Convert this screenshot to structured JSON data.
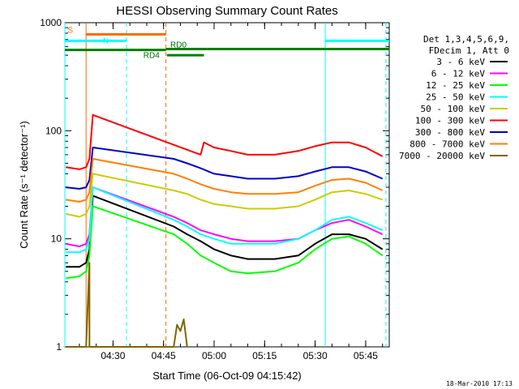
{
  "chart_data": {
    "type": "line",
    "title": "HESSI Observing Summary Count Rates",
    "xlabel": "Start Time (06-Oct-09 04:15:42)",
    "ylabel": "Count Rate (s⁻¹ detector⁻¹)",
    "yscale": "log",
    "ylim": [
      1,
      1000
    ],
    "xlim": [
      "04:15:42",
      "05:52:00"
    ],
    "x_ticks": [
      "04:30",
      "04:45",
      "05:00",
      "05:15",
      "05:30",
      "05:45"
    ],
    "y_ticks": [
      "1",
      "10",
      "100",
      "1000"
    ],
    "legend_position": "right",
    "legend_header": [
      "Det 1,3,4,5,6,9,",
      "FDecim 1, Att 0"
    ],
    "series": [
      {
        "name": "3 - 6 keV",
        "color": "#000000",
        "points": [
          [
            "04:16",
            5.5
          ],
          [
            "04:20",
            5.5
          ],
          [
            "04:22",
            6
          ],
          [
            "04:23",
            8
          ],
          [
            "04:24",
            25
          ],
          [
            "04:48",
            13
          ],
          [
            "04:52",
            11
          ],
          [
            "04:56",
            9.5
          ],
          [
            "05:00",
            8
          ],
          [
            "05:05",
            7
          ],
          [
            "05:10",
            6.5
          ],
          [
            "05:18",
            6.5
          ],
          [
            "05:25",
            7
          ],
          [
            "05:30",
            9
          ],
          [
            "05:35",
            11
          ],
          [
            "05:40",
            11
          ],
          [
            "05:45",
            10
          ],
          [
            "05:50",
            8
          ]
        ]
      },
      {
        "name": "6 - 12 keV",
        "color": "#ff00ff",
        "points": [
          [
            "04:16",
            9
          ],
          [
            "04:20",
            8.5
          ],
          [
            "04:22",
            9
          ],
          [
            "04:23",
            11
          ],
          [
            "04:24",
            30
          ],
          [
            "04:48",
            16
          ],
          [
            "04:52",
            14
          ],
          [
            "04:56",
            12
          ],
          [
            "05:00",
            11
          ],
          [
            "05:05",
            10
          ],
          [
            "05:10",
            9.5
          ],
          [
            "05:18",
            9.5
          ],
          [
            "05:25",
            10
          ],
          [
            "05:30",
            12
          ],
          [
            "05:35",
            14
          ],
          [
            "05:40",
            15
          ],
          [
            "05:45",
            13
          ],
          [
            "05:50",
            11
          ]
        ]
      },
      {
        "name": "12 - 25 keV",
        "color": "#00ff00",
        "points": [
          [
            "04:16",
            4.3
          ],
          [
            "04:20",
            4.5
          ],
          [
            "04:22",
            5
          ],
          [
            "04:23",
            7
          ],
          [
            "04:24",
            20
          ],
          [
            "04:48",
            11
          ],
          [
            "04:52",
            9
          ],
          [
            "04:56",
            7
          ],
          [
            "05:00",
            6
          ],
          [
            "05:05",
            5
          ],
          [
            "05:10",
            4.8
          ],
          [
            "05:18",
            5
          ],
          [
            "05:25",
            6
          ],
          [
            "05:30",
            8
          ],
          [
            "05:35",
            10
          ],
          [
            "05:40",
            10.5
          ],
          [
            "05:45",
            9
          ],
          [
            "05:50",
            7
          ]
        ]
      },
      {
        "name": "25 - 50 keV",
        "color": "#00ffff",
        "points": [
          [
            "04:16",
            7.5
          ],
          [
            "04:20",
            7.5
          ],
          [
            "04:22",
            8
          ],
          [
            "04:23",
            10
          ],
          [
            "04:24",
            30
          ],
          [
            "04:48",
            15
          ],
          [
            "04:52",
            13
          ],
          [
            "04:56",
            11
          ],
          [
            "05:00",
            10
          ],
          [
            "05:05",
            9
          ],
          [
            "05:10",
            9
          ],
          [
            "05:18",
            9
          ],
          [
            "05:25",
            10
          ],
          [
            "05:30",
            12
          ],
          [
            "05:35",
            15
          ],
          [
            "05:40",
            16
          ],
          [
            "05:45",
            14
          ],
          [
            "05:50",
            12
          ]
        ]
      },
      {
        "name": "50 - 100 keV",
        "color": "#cccc00",
        "points": [
          [
            "04:16",
            17
          ],
          [
            "04:20",
            16
          ],
          [
            "04:22",
            17
          ],
          [
            "04:23",
            20
          ],
          [
            "04:24",
            40
          ],
          [
            "04:48",
            28
          ],
          [
            "04:52",
            26
          ],
          [
            "04:56",
            23
          ],
          [
            "05:00",
            21
          ],
          [
            "05:05",
            20
          ],
          [
            "05:10",
            19
          ],
          [
            "05:18",
            19
          ],
          [
            "05:25",
            20
          ],
          [
            "05:30",
            23
          ],
          [
            "05:35",
            27
          ],
          [
            "05:40",
            28
          ],
          [
            "05:45",
            26
          ],
          [
            "05:50",
            23
          ]
        ]
      },
      {
        "name": "100 - 300 keV",
        "color": "#ff0000",
        "points": [
          [
            "04:16",
            46
          ],
          [
            "04:20",
            44
          ],
          [
            "04:22",
            46
          ],
          [
            "04:23",
            55
          ],
          [
            "04:24",
            140
          ],
          [
            "04:56",
            60
          ],
          [
            "04:57",
            78
          ],
          [
            "05:00",
            70
          ],
          [
            "05:05",
            65
          ],
          [
            "05:10",
            60
          ],
          [
            "05:18",
            60
          ],
          [
            "05:25",
            65
          ],
          [
            "05:30",
            72
          ],
          [
            "05:35",
            78
          ],
          [
            "05:40",
            78
          ],
          [
            "05:45",
            70
          ],
          [
            "05:50",
            58
          ]
        ]
      },
      {
        "name": "300 - 800 keV",
        "color": "#0000cc",
        "points": [
          [
            "04:16",
            30
          ],
          [
            "04:20",
            29
          ],
          [
            "04:22",
            30
          ],
          [
            "04:23",
            35
          ],
          [
            "04:24",
            70
          ],
          [
            "04:48",
            55
          ],
          [
            "04:52",
            50
          ],
          [
            "04:56",
            45
          ],
          [
            "05:00",
            40
          ],
          [
            "05:05",
            38
          ],
          [
            "05:10",
            36
          ],
          [
            "05:18",
            36
          ],
          [
            "05:25",
            38
          ],
          [
            "05:30",
            42
          ],
          [
            "05:35",
            46
          ],
          [
            "05:40",
            46
          ],
          [
            "05:45",
            42
          ],
          [
            "05:50",
            36
          ]
        ]
      },
      {
        "name": "800 - 7000 keV",
        "color": "#ff8000",
        "points": [
          [
            "04:16",
            23
          ],
          [
            "04:20",
            22
          ],
          [
            "04:22",
            23
          ],
          [
            "04:23",
            27
          ],
          [
            "04:24",
            55
          ],
          [
            "04:48",
            40
          ],
          [
            "04:52",
            36
          ],
          [
            "04:56",
            32
          ],
          [
            "05:00",
            29
          ],
          [
            "05:05",
            27
          ],
          [
            "05:10",
            26
          ],
          [
            "05:18",
            26
          ],
          [
            "05:25",
            27
          ],
          [
            "05:30",
            31
          ],
          [
            "05:35",
            35
          ],
          [
            "05:40",
            36
          ],
          [
            "05:45",
            33
          ],
          [
            "05:50",
            28
          ]
        ]
      },
      {
        "name": "7000 - 20000 keV",
        "color": "#806600",
        "points": [
          [
            "04:16",
            1
          ],
          [
            "04:22",
            1
          ],
          [
            "04:23",
            6
          ],
          [
            "04:23",
            1
          ],
          [
            "04:48",
            1
          ],
          [
            "04:49",
            1.6
          ],
          [
            "04:50",
            1.4
          ],
          [
            "04:51",
            1.8
          ],
          [
            "04:52",
            1
          ]
        ]
      }
    ],
    "annotations": {
      "SAA": {
        "label": "S",
        "color": "#ff6600",
        "start": "04:22:00",
        "end": "04:45:42",
        "y": 780
      },
      "Night": [
        {
          "label": "N",
          "color": "#00ffff",
          "start": "04:15:42",
          "end": "04:34:00",
          "y": 680
        },
        {
          "label": "",
          "color": "#00ffff",
          "start": "05:33:00",
          "end": "05:52:00",
          "y": 680
        }
      ],
      "Decimation": [
        {
          "label": "RD0",
          "color": "#008000",
          "start": "04:45:42",
          "end": "04:58:00",
          "y": 570
        },
        {
          "label": "RD4",
          "color": "#008000",
          "start": "04:15:42",
          "end": "04:45:42",
          "y": 560
        },
        {
          "label": "",
          "color": "#008000",
          "start": "04:46:00",
          "end": "04:57:00",
          "y": 500
        },
        {
          "label": "",
          "color": "#008000",
          "start": "04:58:00",
          "end": "05:52:00",
          "y": 570
        }
      ],
      "vertical_lines": [
        {
          "time": "04:15:42",
          "color": "#00ffff",
          "dash": false
        },
        {
          "time": "04:22:00",
          "color": "#ff6600",
          "dash": false
        },
        {
          "time": "04:34:00",
          "color": "#00ffff",
          "dash": true
        },
        {
          "time": "04:45:42",
          "color": "#ff6600",
          "dash": true
        },
        {
          "time": "05:33:00",
          "color": "#00ffff",
          "dash": false
        },
        {
          "time": "05:51:00",
          "color": "#00ffff",
          "dash": true
        }
      ]
    }
  },
  "footer_stamp": "18-Mar-2010 17:13"
}
